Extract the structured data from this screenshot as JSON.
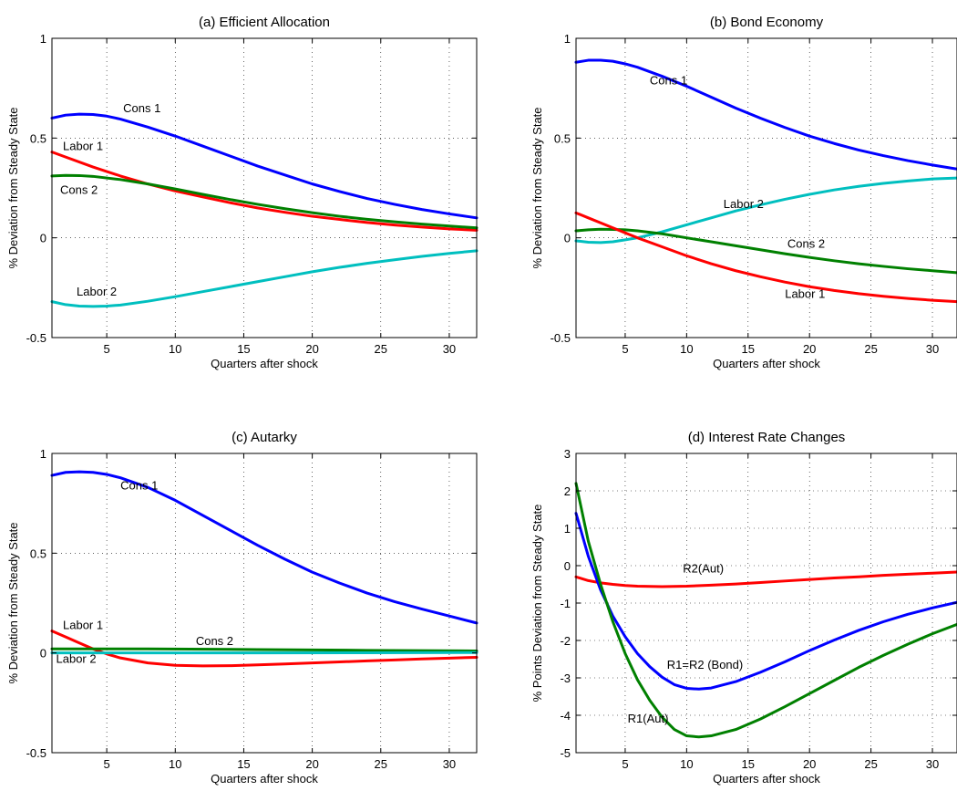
{
  "chart_data": [
    {
      "type": "line",
      "title": "(a) Efficient Allocation",
      "xlabel": "Quarters after shock",
      "ylabel": "% Deviation from Steady State",
      "xlim": [
        1,
        32
      ],
      "ylim": [
        -0.5,
        1
      ],
      "xticks": [
        5,
        10,
        15,
        20,
        25,
        30
      ],
      "yticks": [
        -0.5,
        0,
        0.5,
        1
      ],
      "ytick_labels": [
        "-0.5",
        "0",
        "0.5",
        "1"
      ],
      "grid": true,
      "series": [
        {
          "name": "Cons 1",
          "color": "#0000ff",
          "x": [
            1,
            2,
            3,
            4,
            5,
            6,
            8,
            10,
            12,
            14,
            16,
            18,
            20,
            22,
            24,
            26,
            28,
            30,
            32
          ],
          "y": [
            0.6,
            0.615,
            0.62,
            0.618,
            0.61,
            0.595,
            0.555,
            0.51,
            0.46,
            0.41,
            0.36,
            0.315,
            0.27,
            0.232,
            0.197,
            0.168,
            0.142,
            0.12,
            0.1
          ]
        },
        {
          "name": "Labor 1",
          "color": "#ff0000",
          "x": [
            1,
            2,
            4,
            6,
            8,
            10,
            12,
            14,
            16,
            18,
            20,
            22,
            24,
            26,
            28,
            30,
            32
          ],
          "y": [
            0.43,
            0.405,
            0.355,
            0.31,
            0.27,
            0.235,
            0.205,
            0.176,
            0.15,
            0.128,
            0.108,
            0.092,
            0.077,
            0.064,
            0.054,
            0.045,
            0.038
          ]
        },
        {
          "name": "Cons 2",
          "color": "#008000",
          "x": [
            1,
            2,
            3,
            4,
            6,
            8,
            10,
            12,
            14,
            16,
            18,
            20,
            22,
            24,
            26,
            28,
            30,
            32
          ],
          "y": [
            0.31,
            0.313,
            0.312,
            0.308,
            0.292,
            0.27,
            0.245,
            0.218,
            0.192,
            0.168,
            0.146,
            0.126,
            0.108,
            0.093,
            0.08,
            0.069,
            0.059,
            0.05
          ]
        },
        {
          "name": "Labor 2",
          "color": "#00bfbf",
          "x": [
            1,
            2,
            3,
            4,
            5,
            6,
            8,
            10,
            12,
            14,
            16,
            18,
            20,
            22,
            24,
            26,
            28,
            30,
            32
          ],
          "y": [
            -0.32,
            -0.335,
            -0.342,
            -0.344,
            -0.342,
            -0.337,
            -0.318,
            -0.295,
            -0.27,
            -0.245,
            -0.22,
            -0.195,
            -0.17,
            -0.148,
            -0.128,
            -0.11,
            -0.093,
            -0.078,
            -0.065
          ]
        }
      ],
      "annotations": [
        {
          "text": "Cons 1",
          "x": 6.2,
          "y": 0.63
        },
        {
          "text": "Labor 1",
          "x": 1.8,
          "y": 0.44
        },
        {
          "text": "Cons 2",
          "x": 1.6,
          "y": 0.22
        },
        {
          "text": "Labor 2",
          "x": 2.8,
          "y": -0.29
        }
      ]
    },
    {
      "type": "line",
      "title": "(b) Bond Economy",
      "xlabel": "Quarters after shock",
      "ylabel": "% Deviation from Steady State",
      "xlim": [
        1,
        32
      ],
      "ylim": [
        -0.5,
        1
      ],
      "xticks": [
        5,
        10,
        15,
        20,
        25,
        30
      ],
      "yticks": [
        -0.5,
        0,
        0.5,
        1
      ],
      "ytick_labels": [
        "-0.5",
        "0",
        "0.5",
        "1"
      ],
      "grid": true,
      "series": [
        {
          "name": "Cons 1",
          "color": "#0000ff",
          "x": [
            1,
            2,
            3,
            4,
            5,
            6,
            8,
            10,
            12,
            14,
            16,
            18,
            20,
            22,
            24,
            26,
            28,
            30,
            32
          ],
          "y": [
            0.88,
            0.89,
            0.89,
            0.885,
            0.872,
            0.855,
            0.81,
            0.76,
            0.705,
            0.65,
            0.6,
            0.553,
            0.51,
            0.473,
            0.44,
            0.412,
            0.387,
            0.365,
            0.345
          ]
        },
        {
          "name": "Labor 2",
          "color": "#00bfbf",
          "x": [
            1,
            2,
            3,
            4,
            5,
            6,
            8,
            10,
            12,
            14,
            16,
            18,
            20,
            22,
            24,
            26,
            28,
            30,
            32
          ],
          "y": [
            -0.015,
            -0.022,
            -0.024,
            -0.02,
            -0.01,
            0.0,
            0.03,
            0.065,
            0.1,
            0.135,
            0.165,
            0.193,
            0.218,
            0.24,
            0.258,
            0.273,
            0.285,
            0.295,
            0.3
          ]
        },
        {
          "name": "Cons 2",
          "color": "#008000",
          "x": [
            1,
            2,
            3,
            4,
            5,
            6,
            8,
            10,
            12,
            14,
            16,
            18,
            20,
            22,
            24,
            26,
            28,
            30,
            32
          ],
          "y": [
            0.035,
            0.04,
            0.043,
            0.042,
            0.04,
            0.035,
            0.02,
            0.0,
            -0.02,
            -0.04,
            -0.06,
            -0.08,
            -0.098,
            -0.115,
            -0.13,
            -0.143,
            -0.155,
            -0.165,
            -0.175
          ]
        },
        {
          "name": "Labor 1",
          "color": "#ff0000",
          "x": [
            1,
            2,
            3,
            4,
            5,
            6,
            8,
            10,
            12,
            14,
            16,
            18,
            20,
            22,
            24,
            26,
            28,
            30,
            32
          ],
          "y": [
            0.125,
            0.1,
            0.075,
            0.05,
            0.025,
            0.0,
            -0.045,
            -0.09,
            -0.13,
            -0.165,
            -0.195,
            -0.222,
            -0.245,
            -0.264,
            -0.28,
            -0.293,
            -0.304,
            -0.313,
            -0.32
          ]
        }
      ],
      "annotations": [
        {
          "text": "Cons 1",
          "x": 7.0,
          "y": 0.77
        },
        {
          "text": "Labor 2",
          "x": 13.0,
          "y": 0.15
        },
        {
          "text": "Cons 2",
          "x": 18.2,
          "y": -0.05
        },
        {
          "text": "Labor 1",
          "x": 18.0,
          "y": -0.3
        }
      ]
    },
    {
      "type": "line",
      "title": "(c) Autarky",
      "xlabel": "Quarters after shock",
      "ylabel": "% Deviation from Steady State",
      "xlim": [
        1,
        32
      ],
      "ylim": [
        -0.5,
        1
      ],
      "xticks": [
        5,
        10,
        15,
        20,
        25,
        30
      ],
      "yticks": [
        -0.5,
        0,
        0.5,
        1
      ],
      "ytick_labels": [
        "-0.5",
        "0",
        "0.5",
        "1"
      ],
      "grid": true,
      "series": [
        {
          "name": "Cons 1",
          "color": "#0000ff",
          "x": [
            1,
            2,
            3,
            4,
            5,
            6,
            8,
            10,
            12,
            14,
            16,
            18,
            20,
            22,
            24,
            26,
            28,
            30,
            32
          ],
          "y": [
            0.89,
            0.905,
            0.908,
            0.905,
            0.895,
            0.878,
            0.83,
            0.765,
            0.69,
            0.615,
            0.54,
            0.47,
            0.405,
            0.35,
            0.3,
            0.257,
            0.22,
            0.185,
            0.15
          ]
        },
        {
          "name": "Labor 1",
          "color": "#ff0000",
          "x": [
            1,
            2,
            3,
            4,
            5,
            6,
            8,
            10,
            12,
            14,
            16,
            18,
            20,
            22,
            24,
            26,
            28,
            30,
            32
          ],
          "y": [
            0.11,
            0.08,
            0.05,
            0.02,
            -0.005,
            -0.025,
            -0.05,
            -0.062,
            -0.065,
            -0.064,
            -0.06,
            -0.055,
            -0.05,
            -0.045,
            -0.04,
            -0.035,
            -0.03,
            -0.026,
            -0.022
          ]
        },
        {
          "name": "Cons 2",
          "color": "#008000",
          "x": [
            1,
            8,
            16,
            24,
            32
          ],
          "y": [
            0.02,
            0.02,
            0.017,
            0.013,
            0.01
          ]
        },
        {
          "name": "Labor 2",
          "color": "#00bfbf",
          "x": [
            1,
            8,
            16,
            24,
            32
          ],
          "y": [
            0.0,
            0.0,
            0.0,
            0.001,
            0.002
          ]
        }
      ],
      "annotations": [
        {
          "text": "Cons 1",
          "x": 6.0,
          "y": 0.82
        },
        {
          "text": "Labor 1",
          "x": 1.8,
          "y": 0.12
        },
        {
          "text": "Cons 2",
          "x": 11.5,
          "y": 0.04
        },
        {
          "text": "Labor 2",
          "x": 1.3,
          "y": -0.05
        }
      ]
    },
    {
      "type": "line",
      "title": "(d) Interest Rate Changes",
      "xlabel": "Quarters after shock",
      "ylabel": "% Points Deviation from Steady State",
      "xlim": [
        1,
        32
      ],
      "ylim": [
        -5,
        3
      ],
      "xticks": [
        5,
        10,
        15,
        20,
        25,
        30
      ],
      "yticks": [
        -5,
        -4,
        -3,
        -2,
        -1,
        0,
        1,
        2,
        3
      ],
      "ytick_labels": [
        "-5",
        "-4",
        "-3",
        "-2",
        "-1",
        "0",
        "1",
        "2",
        "3"
      ],
      "grid": true,
      "series": [
        {
          "name": "R2(Aut)",
          "color": "#ff0000",
          "x": [
            1,
            2,
            3,
            4,
            5,
            6,
            8,
            10,
            12,
            14,
            16,
            18,
            20,
            22,
            24,
            26,
            28,
            30,
            32
          ],
          "y": [
            -0.3,
            -0.4,
            -0.46,
            -0.5,
            -0.53,
            -0.55,
            -0.56,
            -0.55,
            -0.52,
            -0.49,
            -0.45,
            -0.41,
            -0.37,
            -0.33,
            -0.3,
            -0.26,
            -0.23,
            -0.2,
            -0.17
          ]
        },
        {
          "name": "R1=R2 (Bond)",
          "color": "#0000ff",
          "x": [
            1,
            2,
            3,
            4,
            5,
            6,
            7,
            8,
            9,
            10,
            11,
            12,
            14,
            16,
            18,
            20,
            22,
            24,
            26,
            28,
            30,
            32
          ],
          "y": [
            1.4,
            0.25,
            -0.65,
            -1.35,
            -1.9,
            -2.35,
            -2.7,
            -2.98,
            -3.18,
            -3.28,
            -3.3,
            -3.27,
            -3.1,
            -2.85,
            -2.57,
            -2.27,
            -1.99,
            -1.73,
            -1.5,
            -1.3,
            -1.13,
            -0.98
          ]
        },
        {
          "name": "R1(Aut)",
          "color": "#008000",
          "x": [
            1,
            2,
            3,
            4,
            5,
            6,
            7,
            8,
            9,
            10,
            11,
            12,
            14,
            16,
            18,
            20,
            22,
            24,
            26,
            28,
            30,
            32
          ],
          "y": [
            2.2,
            0.65,
            -0.5,
            -1.5,
            -2.35,
            -3.05,
            -3.6,
            -4.05,
            -4.38,
            -4.55,
            -4.58,
            -4.55,
            -4.38,
            -4.1,
            -3.77,
            -3.42,
            -3.07,
            -2.72,
            -2.4,
            -2.1,
            -1.82,
            -1.57
          ]
        }
      ],
      "annotations": [
        {
          "text": "R2(Aut)",
          "x": 9.7,
          "y": -0.18
        },
        {
          "text": "R1=R2 (Bond)",
          "x": 8.4,
          "y": -2.75
        },
        {
          "text": "R1(Aut)",
          "x": 5.2,
          "y": -4.2
        }
      ]
    }
  ]
}
